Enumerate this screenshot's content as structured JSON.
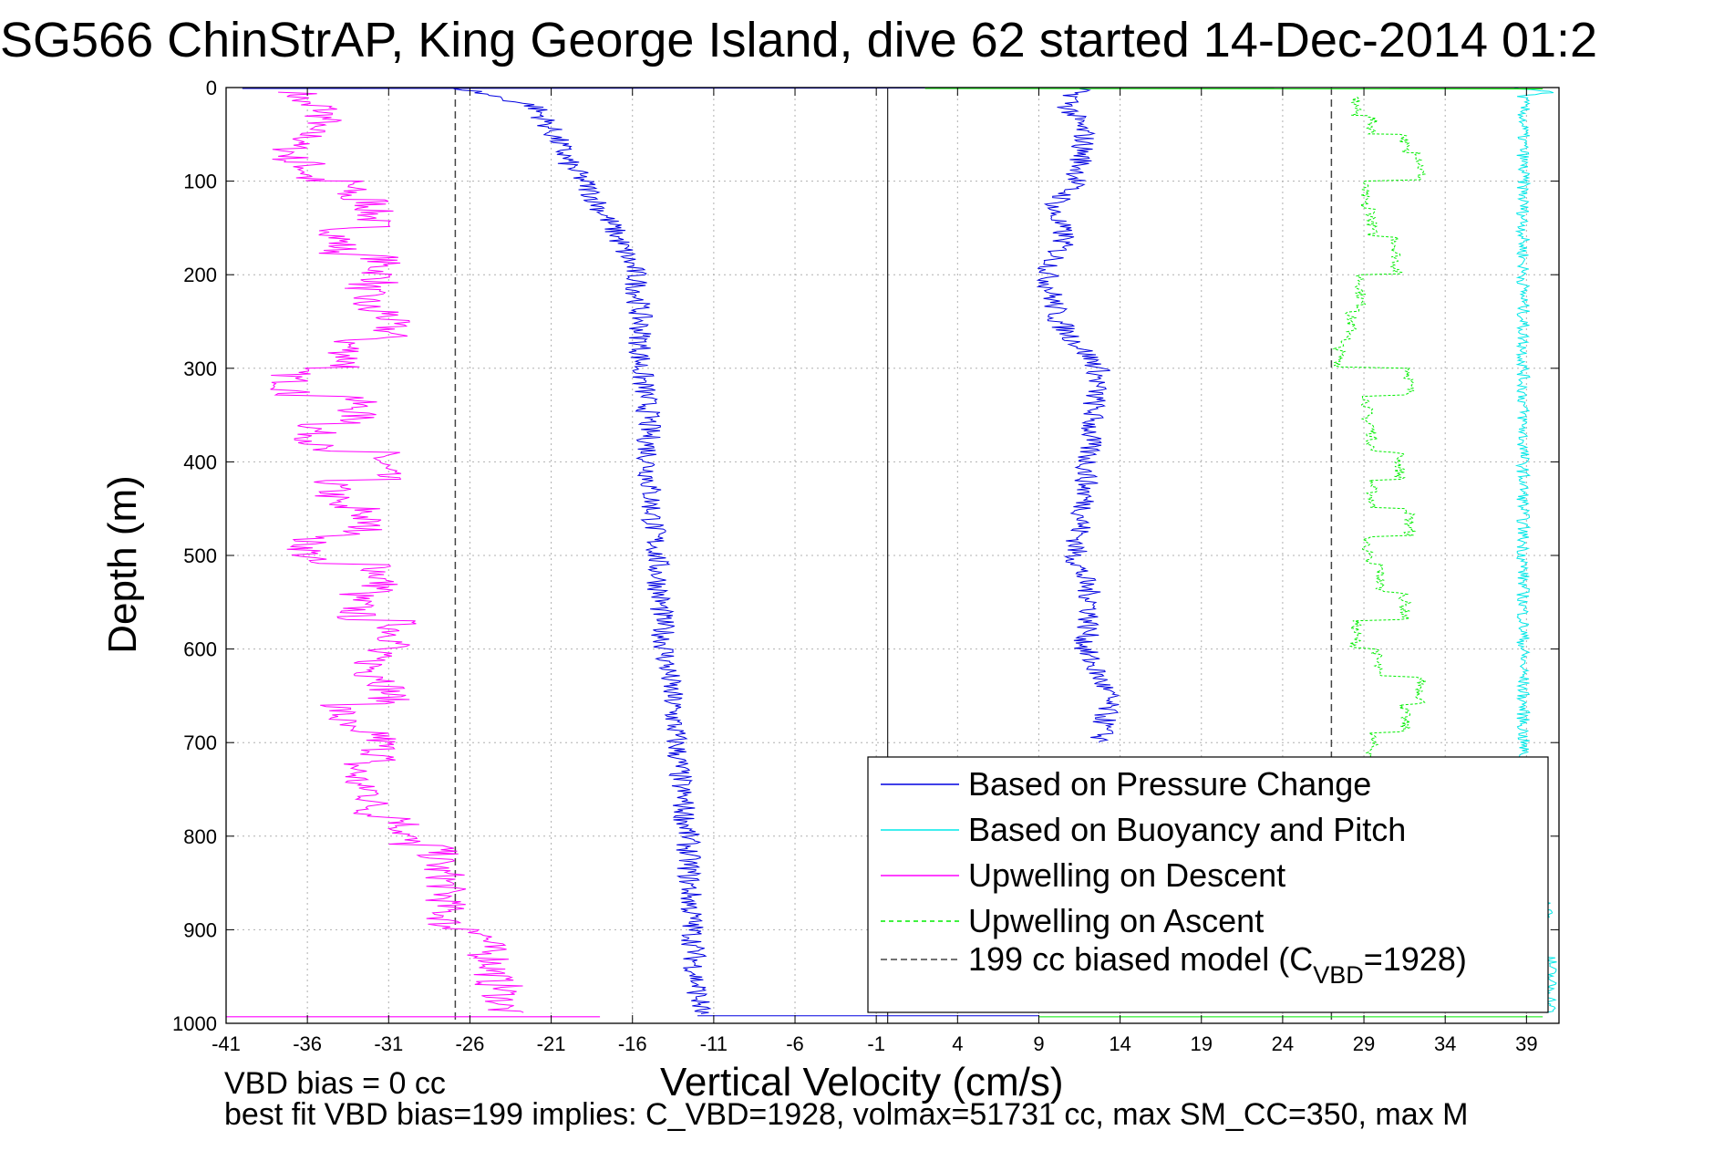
{
  "chart_data": {
    "type": "line",
    "title": "SG566 ChinStrAP, King George Island, dive 62 started 14-Dec-2014 01:2",
    "xlabel": "Vertical Velocity (cm/s)",
    "ylabel": "Depth (m)",
    "xlim": [
      -41,
      41
    ],
    "ylim": [
      0,
      1000
    ],
    "y_reversed": true,
    "grid": true,
    "x_ticks": [
      -41,
      -36,
      -31,
      -26,
      -21,
      -16,
      -11,
      -6,
      -1,
      4,
      9,
      14,
      19,
      24,
      29,
      34,
      39
    ],
    "y_ticks": [
      0,
      100,
      200,
      300,
      400,
      500,
      600,
      700,
      800,
      900,
      1000
    ],
    "zero_line_x": -0.3,
    "legend": {
      "placement": "bottom-right",
      "entries": [
        "Based on Pressure Change",
        "Based on Buoyancy and Pitch",
        "Upwelling on Descent",
        "Upwelling on Ascent",
        "199 cc biased model (C",
        "VBD",
        "=1928)"
      ]
    },
    "colors": {
      "pressure": "#0000e0",
      "buoyancy": "#00e8e8",
      "upwelling_descent": "#ff00ff",
      "upwelling_ascent": "#00ee00",
      "model": "#444444"
    },
    "series": [
      {
        "key": "pressure_descent",
        "depth": [
          0,
          5,
          20,
          40,
          60,
          80,
          100,
          150,
          200,
          250,
          300,
          350,
          400,
          450,
          500,
          550,
          600,
          650,
          700,
          750,
          800,
          850,
          900,
          950,
          990
        ],
        "velocity": [
          -26.8,
          -25.5,
          -22,
          -21.2,
          -20.5,
          -20,
          -19,
          -17.2,
          -15.8,
          -15.5,
          -15.5,
          -15,
          -15,
          -14.8,
          -14.5,
          -14.3,
          -14,
          -13.6,
          -13.3,
          -13,
          -12.6,
          -12.5,
          -12.3,
          -12.1,
          -11.8
        ]
      },
      {
        "key": "pressure_ascent",
        "depth": [
          0,
          20,
          50,
          80,
          100,
          130,
          160,
          200,
          250,
          300,
          350,
          400,
          450,
          500,
          550,
          600,
          650,
          700
        ],
        "velocity": [
          11.5,
          10.8,
          11.8,
          11.6,
          11.3,
          9.8,
          10.6,
          9.5,
          10.2,
          12.7,
          12.3,
          12,
          11.8,
          11.2,
          12.3,
          11.8,
          13.3,
          12.8
        ]
      },
      {
        "key": "upwelling_descent",
        "depth": [
          5,
          20,
          40,
          60,
          80,
          100,
          120,
          150,
          180,
          210,
          240,
          270,
          300,
          330,
          360,
          390,
          420,
          450,
          480,
          510,
          540,
          570,
          600,
          630,
          660,
          690,
          720,
          750,
          780,
          810,
          840,
          870,
          900,
          930,
          960,
          990
        ],
        "velocity": [
          -36.5,
          -35,
          -36,
          -37,
          -36,
          -33.5,
          -32,
          -34,
          -31.5,
          -32.5,
          -31,
          -33.5,
          -37,
          -33,
          -35.5,
          -31.5,
          -34.5,
          -32.5,
          -36,
          -31.5,
          -33,
          -30.5,
          -32,
          -31,
          -34,
          -31.5,
          -33,
          -32,
          -30,
          -28,
          -27.5,
          -27.5,
          -25,
          -24.5,
          -24,
          -24
        ]
      },
      {
        "key": "upwelling_ascent",
        "depth": [
          10,
          30,
          50,
          70,
          100,
          130,
          160,
          200,
          240,
          270,
          300,
          330,
          360,
          390,
          420,
          450,
          480,
          510,
          540,
          570,
          600,
          630,
          660,
          690,
          720
        ],
        "velocity": [
          28.5,
          29.5,
          31.5,
          32.5,
          29,
          29.5,
          31,
          28.8,
          28.2,
          27.5,
          31.8,
          29.2,
          29.5,
          31.2,
          29.5,
          31.8,
          29.2,
          30,
          31.5,
          28.5,
          29.8,
          32.5,
          31.5,
          29.5,
          30
        ]
      },
      {
        "key": "buoyancy_pitch",
        "depth": [
          0,
          2,
          4,
          6,
          8,
          850,
          870,
          900,
          930,
          990
        ],
        "velocity": [
          38.5,
          39.5,
          40.5,
          39.8,
          38.8,
          39.5,
          40.2,
          39.8,
          40.5,
          40
        ]
      }
    ],
    "model_lines": [
      {
        "label": "199 cc biased model",
        "x": -26.9,
        "depth": [
          0,
          1000
        ]
      },
      {
        "label": "199 cc biased model",
        "x": 27,
        "depth": [
          0,
          1000
        ]
      }
    ]
  },
  "notes": {
    "bias_line": "VBD bias = 0 cc",
    "fit_line": "best fit VBD bias=199 implies: C_VBD=1928, volmax=51731 cc, max SM_CC=350, max M"
  }
}
